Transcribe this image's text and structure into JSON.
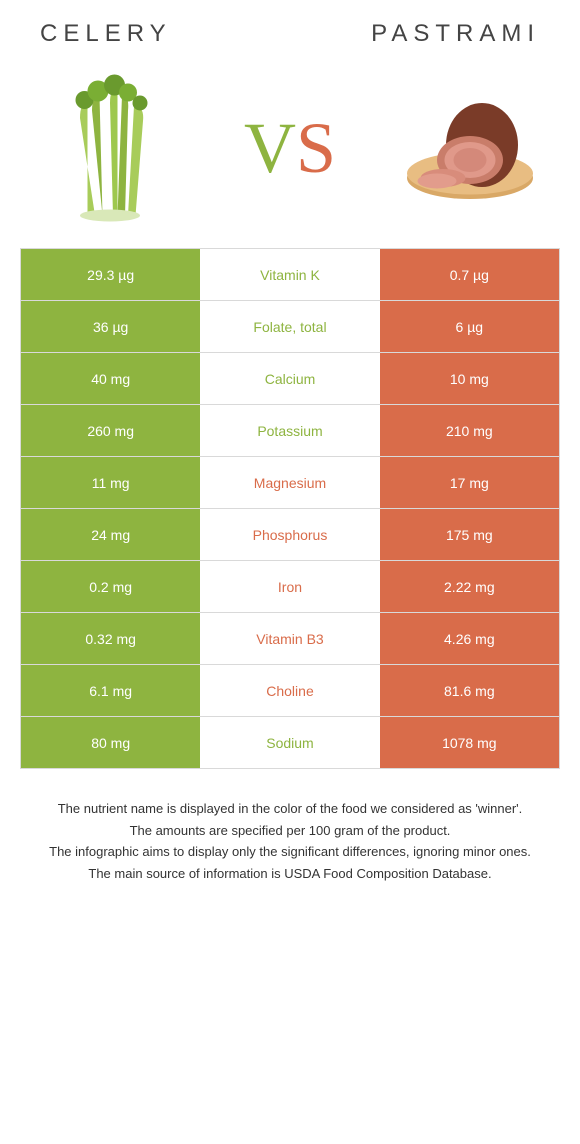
{
  "header": {
    "left_title": "CELERY",
    "right_title": "PASTRAMI"
  },
  "vs": {
    "v": "V",
    "s": "S"
  },
  "colors": {
    "green": "#8eb440",
    "orange": "#d96c4a",
    "border": "#d9d9d9",
    "white": "#ffffff",
    "text": "#333333"
  },
  "rows": [
    {
      "nutrient": "Vitamin K",
      "left": "29.3 µg",
      "right": "0.7 µg",
      "winner": "left"
    },
    {
      "nutrient": "Folate, total",
      "left": "36 µg",
      "right": "6 µg",
      "winner": "left"
    },
    {
      "nutrient": "Calcium",
      "left": "40 mg",
      "right": "10 mg",
      "winner": "left"
    },
    {
      "nutrient": "Potassium",
      "left": "260 mg",
      "right": "210 mg",
      "winner": "left"
    },
    {
      "nutrient": "Magnesium",
      "left": "11 mg",
      "right": "17 mg",
      "winner": "right"
    },
    {
      "nutrient": "Phosphorus",
      "left": "24 mg",
      "right": "175 mg",
      "winner": "right"
    },
    {
      "nutrient": "Iron",
      "left": "0.2 mg",
      "right": "2.22 mg",
      "winner": "right"
    },
    {
      "nutrient": "Vitamin B3",
      "left": "0.32 mg",
      "right": "4.26 mg",
      "winner": "right"
    },
    {
      "nutrient": "Choline",
      "left": "6.1 mg",
      "right": "81.6 mg",
      "winner": "right"
    },
    {
      "nutrient": "Sodium",
      "left": "80 mg",
      "right": "1078 mg",
      "winner": "left"
    }
  ],
  "footnotes": [
    "The nutrient name is displayed in the color of the food we considered as 'winner'.",
    "The amounts are specified per 100 gram of the product.",
    "The infographic aims to display only the significant differences, ignoring minor ones.",
    "The main source of information is USDA Food Composition Database."
  ]
}
